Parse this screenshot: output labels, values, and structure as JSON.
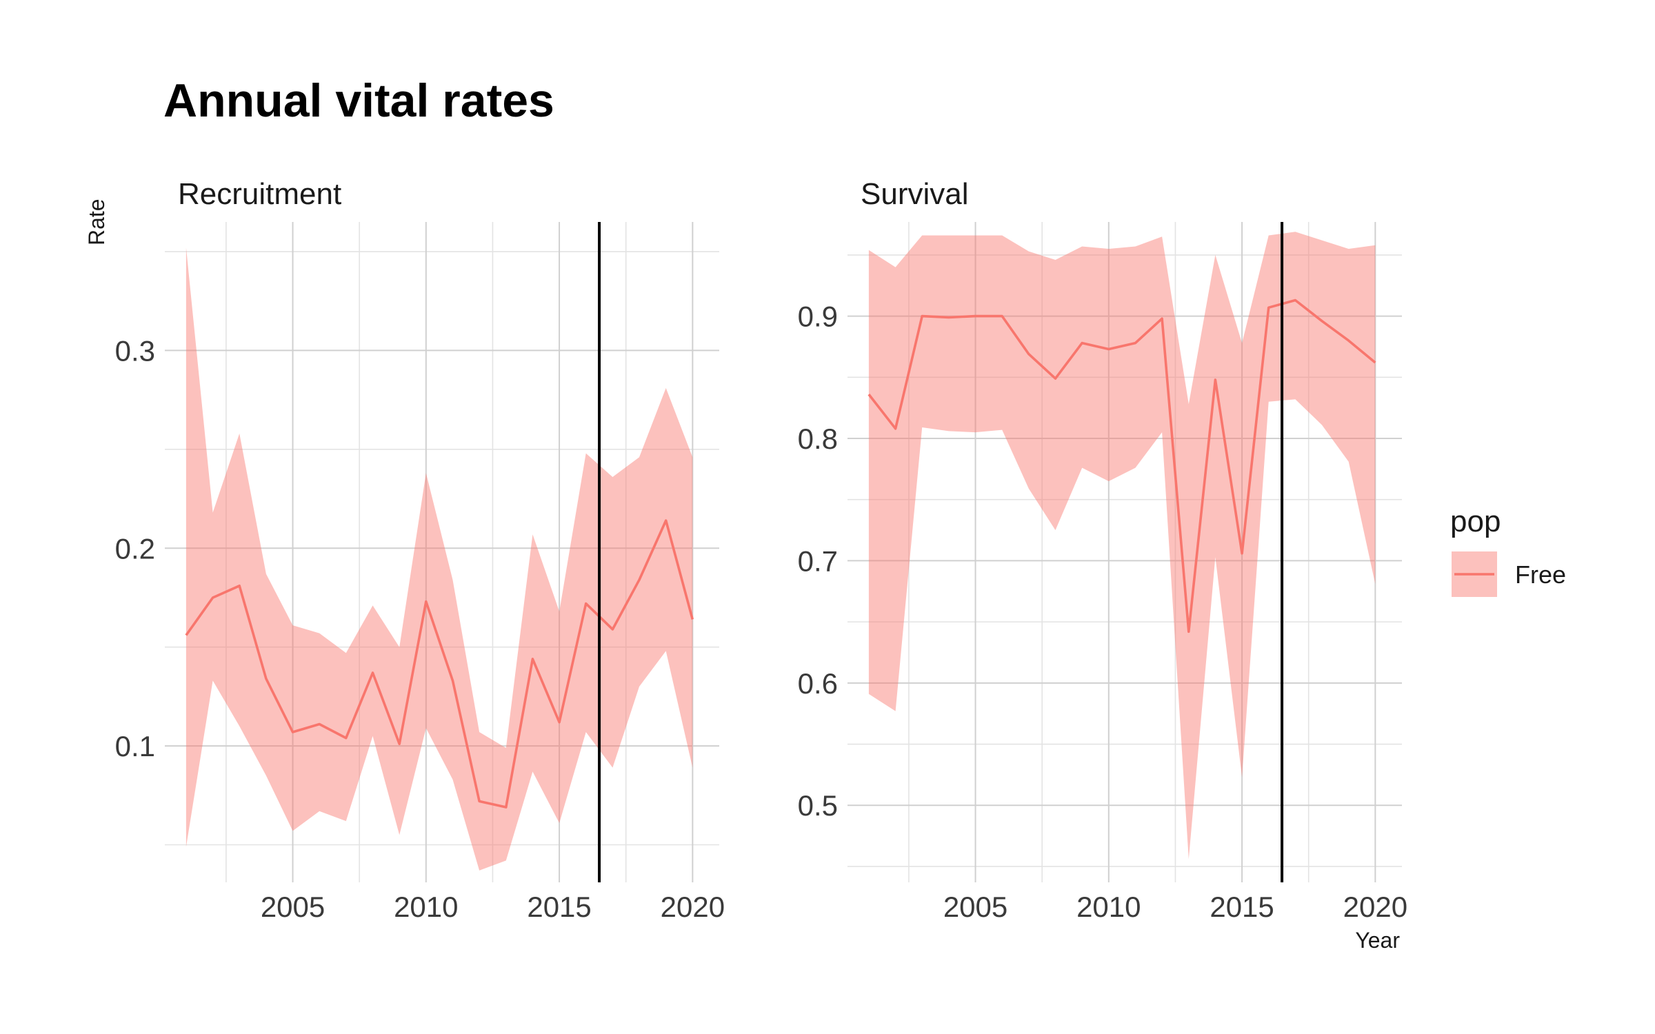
{
  "title": "Annual vital rates",
  "chart_data": {
    "type": "line",
    "title": "Annual vital rates",
    "xlabel": "Year",
    "ylabel": "Rate",
    "ribbon": true,
    "grid": true,
    "legend_position": "right",
    "legend": {
      "title": "pop",
      "entries": [
        {
          "label": "Free",
          "line_color": "#F8766D",
          "fill_color": "#F8766D"
        }
      ]
    },
    "vertical_reference_line": {
      "x": 2016.5,
      "color": "#000000"
    },
    "panels": [
      {
        "name": "Recruitment",
        "xlim": [
          2000.2,
          2021.0
        ],
        "ylim": [
          0.031,
          0.365
        ],
        "x_ticks": [
          2005,
          2010,
          2015,
          2020
        ],
        "x_tick_labels": [
          "2005",
          "2010",
          "2015",
          "2020"
        ],
        "y_ticks": [
          0.1,
          0.2,
          0.3
        ],
        "y_tick_labels": [
          "0.1",
          "0.2",
          "0.3"
        ],
        "y_minor_ticks": [
          0.05,
          0.15,
          0.25,
          0.35
        ],
        "series": [
          {
            "name": "Free",
            "x": [
              2001,
              2002,
              2003,
              2004,
              2005,
              2006,
              2007,
              2008,
              2009,
              2010,
              2011,
              2012,
              2013,
              2014,
              2015,
              2016,
              2017,
              2018,
              2019,
              2020
            ],
            "y": [
              0.156,
              0.175,
              0.181,
              0.134,
              0.107,
              0.111,
              0.104,
              0.137,
              0.101,
              0.173,
              0.133,
              0.072,
              0.069,
              0.144,
              0.112,
              0.172,
              0.159,
              0.184,
              0.214,
              0.164
            ],
            "lower": [
              0.049,
              0.133,
              0.11,
              0.085,
              0.057,
              0.067,
              0.062,
              0.105,
              0.055,
              0.109,
              0.083,
              0.037,
              0.042,
              0.087,
              0.061,
              0.107,
              0.089,
              0.13,
              0.148,
              0.089
            ],
            "upper": [
              0.352,
              0.218,
              0.258,
              0.187,
              0.161,
              0.157,
              0.147,
              0.171,
              0.15,
              0.238,
              0.184,
              0.107,
              0.099,
              0.207,
              0.168,
              0.248,
              0.236,
              0.246,
              0.281,
              0.246
            ]
          }
        ]
      },
      {
        "name": "Survival",
        "xlim": [
          2000.2,
          2021.0
        ],
        "ylim": [
          0.437,
          0.977
        ],
        "x_ticks": [
          2005,
          2010,
          2015,
          2020
        ],
        "x_tick_labels": [
          "2005",
          "2010",
          "2015",
          "2020"
        ],
        "y_ticks": [
          0.5,
          0.6,
          0.7,
          0.8,
          0.9
        ],
        "y_tick_labels": [
          "0.5",
          "0.6",
          "0.7",
          "0.8",
          "0.9"
        ],
        "y_minor_ticks": [
          0.45,
          0.55,
          0.65,
          0.75,
          0.85,
          0.95
        ],
        "series": [
          {
            "name": "Free",
            "x": [
              2001,
              2002,
              2003,
              2004,
              2005,
              2006,
              2007,
              2008,
              2009,
              2010,
              2011,
              2012,
              2013,
              2014,
              2015,
              2016,
              2017,
              2018,
              2019,
              2020
            ],
            "y": [
              0.836,
              0.808,
              0.9,
              0.899,
              0.9,
              0.9,
              0.869,
              0.849,
              0.878,
              0.873,
              0.878,
              0.898,
              0.642,
              0.848,
              0.706,
              0.907,
              0.913,
              0.896,
              0.88,
              0.862
            ],
            "lower": [
              0.591,
              0.577,
              0.809,
              0.806,
              0.805,
              0.807,
              0.759,
              0.725,
              0.776,
              0.765,
              0.776,
              0.805,
              0.456,
              0.703,
              0.523,
              0.83,
              0.832,
              0.811,
              0.781,
              0.681
            ],
            "upper": [
              0.954,
              0.94,
              0.966,
              0.966,
              0.966,
              0.966,
              0.953,
              0.946,
              0.957,
              0.955,
              0.957,
              0.965,
              0.828,
              0.95,
              0.878,
              0.966,
              0.969,
              0.962,
              0.955,
              0.958
            ]
          }
        ]
      }
    ]
  }
}
